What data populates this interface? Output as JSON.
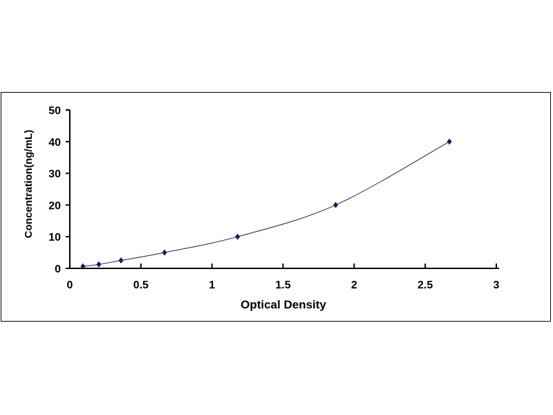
{
  "chart_data": {
    "type": "scatter",
    "title": "",
    "xlabel": "Optical Density",
    "ylabel": "Concentration(ng/mL)",
    "xlim": [
      0,
      3
    ],
    "ylim": [
      0,
      50
    ],
    "xticks": [
      "0",
      "0.5",
      "1",
      "1.5",
      "2",
      "2.5",
      "3"
    ],
    "yticks": [
      "0",
      "10",
      "20",
      "30",
      "40",
      "50"
    ],
    "grid": false,
    "legend": "none",
    "series": [
      {
        "x": [
          0.092,
          0.204,
          0.36,
          0.666,
          1.18,
          1.87,
          2.67
        ],
        "y": [
          0.625,
          1.25,
          2.5,
          5,
          10,
          20,
          40
        ],
        "marker": "diamond",
        "trendline": "smooth curve",
        "color": "#1a1a4e"
      }
    ]
  }
}
